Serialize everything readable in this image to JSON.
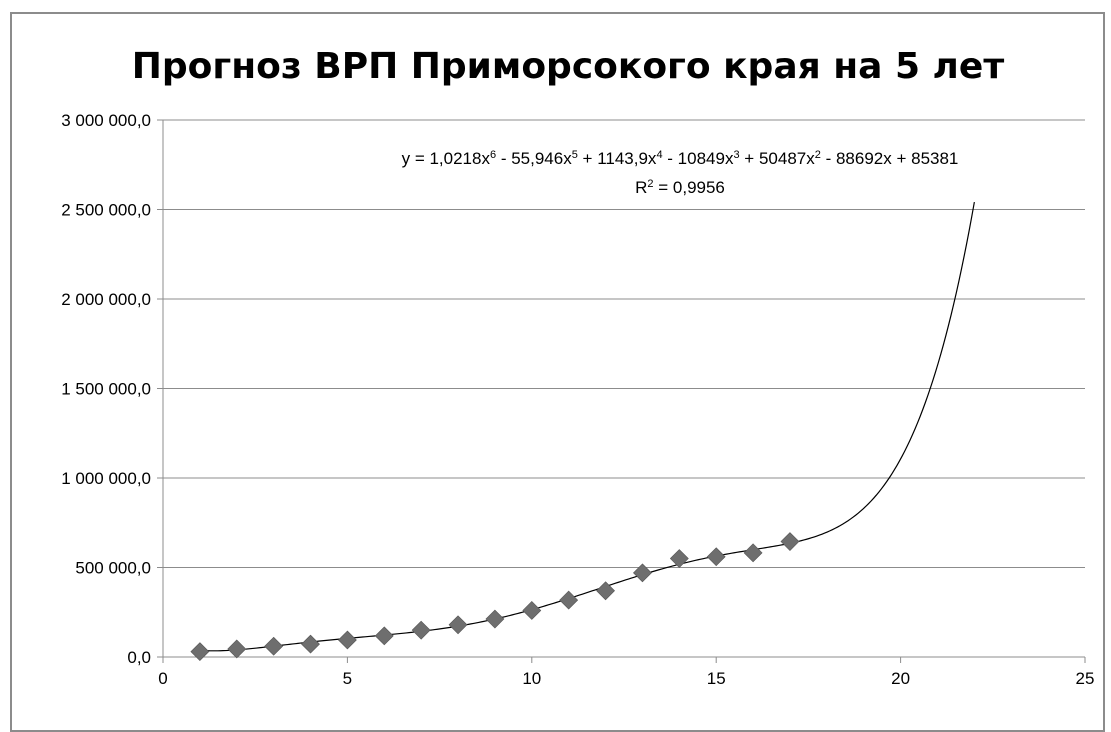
{
  "chart_data": {
    "type": "scatter",
    "title": "Прогноз ВРП Приморсокого края на 5 лет",
    "xlabel": "",
    "ylabel": "",
    "xlim": [
      0,
      25
    ],
    "ylim": [
      0,
      3000000
    ],
    "x_ticks": [
      0,
      5,
      10,
      15,
      20,
      25
    ],
    "x_tick_labels": [
      "0",
      "5",
      "10",
      "15",
      "20",
      "25"
    ],
    "y_ticks": [
      0,
      500000,
      1000000,
      1500000,
      2000000,
      2500000,
      3000000
    ],
    "y_tick_labels": [
      "0,0",
      "500 000,0",
      "1 000 000,0",
      "1 500 000,0",
      "2 000 000,0",
      "2 500 000,0",
      "3 000 000,0"
    ],
    "grid": "horizontal",
    "legend": "none",
    "series": [
      {
        "marker": "diamond",
        "color": "#6e6e6e",
        "x": [
          1,
          2,
          3,
          4,
          5,
          6,
          7,
          8,
          9,
          10,
          11,
          12,
          13,
          14,
          15,
          16,
          17
        ],
        "y": [
          30000,
          45000,
          60000,
          72000,
          95000,
          118000,
          150000,
          180000,
          212000,
          260000,
          318000,
          370000,
          470000,
          550000,
          560000,
          582000,
          645000
        ]
      }
    ],
    "trendline": {
      "type": "polynomial",
      "order": 6,
      "coefficients_high_to_low": [
        1.0218,
        -55.946,
        1143.9,
        -10849,
        50487,
        -88692,
        85381
      ],
      "x_range": [
        1,
        22
      ],
      "color": "#000000",
      "equation_label": {
        "y_prefix": "y = 1,0218x",
        "exp6": "6",
        "t2": " - 55,946x",
        "exp5": "5",
        "t3": " + 1143,9x",
        "exp4": "4",
        "t4": " - 10849x",
        "exp3": "3",
        "t5": " + 50487x",
        "exp2": "2",
        "t6": " - 88692x + 85381"
      },
      "r2_label": {
        "prefix": "R",
        "exp": "2",
        "suffix": " = 0,9956"
      }
    }
  }
}
